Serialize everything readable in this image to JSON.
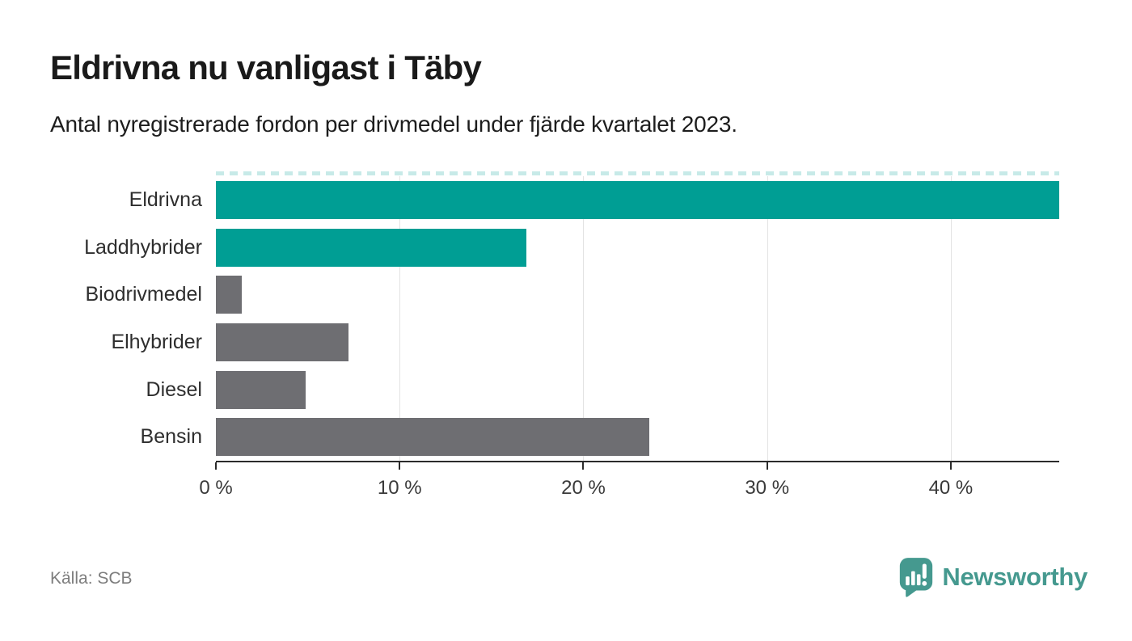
{
  "header": {
    "title": "Eldrivna nu vanligast i Täby",
    "subtitle": "Antal nyregistrerade fordon per drivmedel under fjärde kvartalet 2023."
  },
  "footer": {
    "source_label": "Källa: SCB",
    "brand_name": "Newsworthy"
  },
  "colors": {
    "accent_teal": "#009E94",
    "bar_gray": "#6E6E72",
    "brand_teal": "#45998F",
    "axis": "#2B2B2B",
    "gridline": "#E3E3E3",
    "muted_text": "#7D7D7D",
    "text": "#1D1D1D"
  },
  "chart_data": {
    "type": "bar",
    "orientation": "horizontal",
    "title": "Eldrivna nu vanligast i Täby",
    "subtitle": "Antal nyregistrerade fordon per drivmedel under fjärde kvartalet 2023.",
    "categories": [
      "Eldrivna",
      "Laddhybrider",
      "Biodrivmedel",
      "Elhybrider",
      "Diesel",
      "Bensin"
    ],
    "values": [
      45.9,
      16.9,
      1.4,
      7.2,
      4.9,
      23.6
    ],
    "unit": "%",
    "bar_colors": [
      "#009E94",
      "#009E94",
      "#6E6E72",
      "#6E6E72",
      "#6E6E72",
      "#6E6E72"
    ],
    "xlabel": "",
    "ylabel": "",
    "xlim": [
      0,
      45.9
    ],
    "xticks": [
      0,
      10,
      20,
      30,
      40
    ],
    "xtick_labels": [
      "0 %",
      "10 %",
      "20 %",
      "30 %",
      "40 %"
    ],
    "grid": "vertical-light",
    "legend": "none",
    "source": "SCB"
  }
}
